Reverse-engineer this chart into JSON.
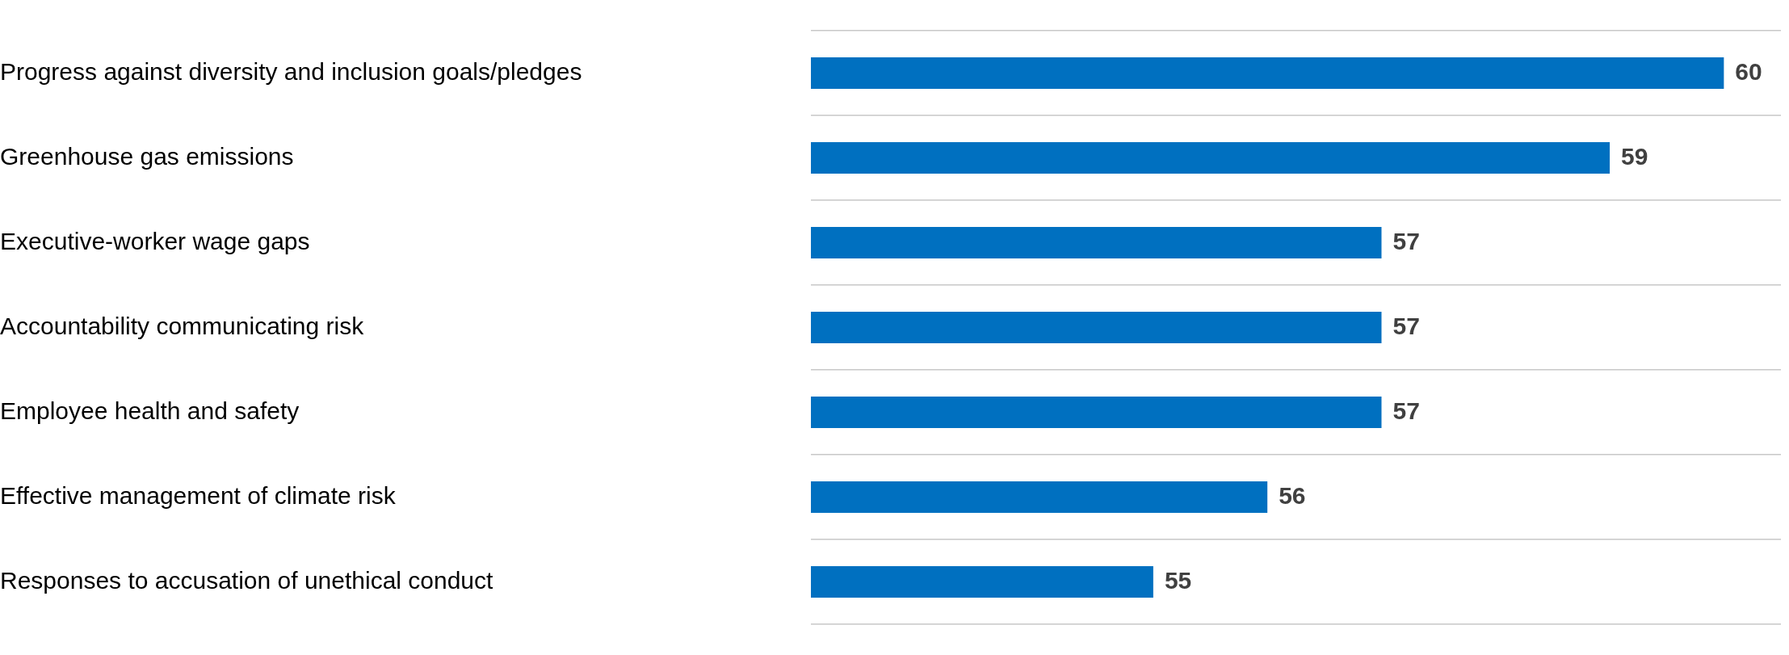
{
  "chart_data": {
    "type": "bar",
    "orientation": "horizontal",
    "categories": [
      "Progress against diversity and inclusion goals/pledges",
      "Greenhouse gas emissions",
      "Executive-worker wage gaps",
      "Accountability communicating risk",
      "Employee health and safety",
      "Effective management of climate risk",
      "Responses to accusation of unethical conduct"
    ],
    "values": [
      60,
      59,
      57,
      57,
      57,
      56,
      55
    ],
    "color": "#0070c0",
    "xlim": [
      52,
      60.5
    ],
    "data_labels": true,
    "grid": "y",
    "tick_labels": "y",
    "legend": false
  }
}
